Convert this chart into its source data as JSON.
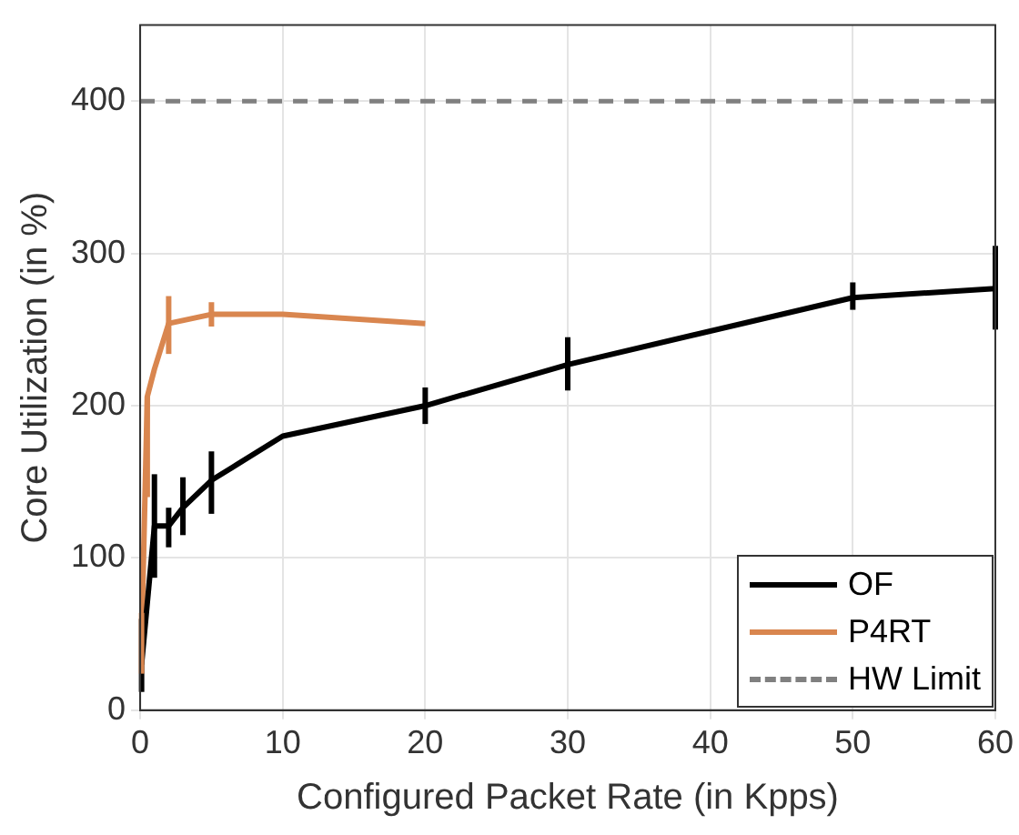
{
  "chart_data": {
    "type": "line",
    "xlabel": "Configured Packet Rate (in Kpps)",
    "ylabel": "Core Utilization (in %)",
    "xlim": [
      0,
      60
    ],
    "xticks": [
      0,
      10,
      20,
      30,
      40,
      50,
      60
    ],
    "ylim": [
      0,
      450
    ],
    "yticks": [
      0,
      100,
      200,
      300,
      400
    ],
    "grid": true,
    "legend": "bottom right",
    "line_style": "solid",
    "marker": "none",
    "series": [
      {
        "name": "OF",
        "color": "#000000",
        "x": [
          0.1,
          1,
          2,
          3,
          5,
          10,
          20,
          30,
          50,
          60
        ],
        "values": [
          30,
          121,
          121,
          133,
          151,
          180,
          200,
          227,
          271,
          277
        ],
        "errors": [
          [
            12,
            60
          ],
          [
            87,
            155
          ],
          [
            107,
            133
          ],
          [
            115,
            153
          ],
          [
            129,
            170
          ],
          null,
          [
            188,
            212
          ],
          [
            210,
            245
          ],
          [
            263,
            281
          ],
          [
            250,
            305
          ]
        ]
      },
      {
        "name": "P4RT",
        "color": "#d9864f",
        "x": [
          0.1,
          0.5,
          1,
          2,
          5,
          10,
          20
        ],
        "values": [
          45,
          206,
          224,
          254,
          260,
          260,
          254
        ],
        "errors": [
          [
            24,
            64
          ],
          [
            140,
            206
          ],
          null,
          [
            234,
            272
          ],
          [
            252,
            268
          ],
          null,
          null
        ]
      }
    ],
    "ref_lines": [
      {
        "axis": "y",
        "value": 400,
        "label": "HW Limit",
        "color": "#808080",
        "line_style": "dashed"
      }
    ]
  }
}
